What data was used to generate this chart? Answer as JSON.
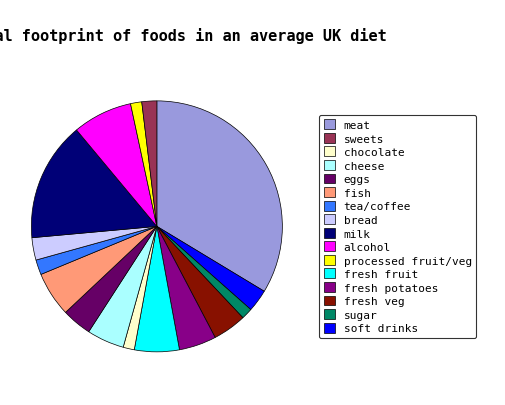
{
  "title": "Total footprint of foods in an average UK diet",
  "labels": [
    "meat",
    "sweets",
    "chocolate",
    "cheese",
    "eggs",
    "fish",
    "tea/coffee",
    "bread",
    "milk",
    "alcohol",
    "processed fruit/veg",
    "fresh fruit",
    "fresh potatoes",
    "fresh veg",
    "sugar",
    "soft drinks"
  ],
  "values": [
    35,
    2,
    1.5,
    5,
    4,
    6,
    2,
    3,
    16,
    8,
    1.5,
    6,
    5,
    4.5,
    1.5,
    3
  ],
  "colors": [
    "#9999dd",
    "#993355",
    "#ffffcc",
    "#aaffff",
    "#660066",
    "#ff9977",
    "#3377ff",
    "#ccccff",
    "#000077",
    "#ff00ff",
    "#ffff00",
    "#00ffff",
    "#880088",
    "#881100",
    "#008866",
    "#0000ff"
  ],
  "pie_order_labels": [
    "meat",
    "soft drinks",
    "sugar",
    "fresh veg",
    "fresh potatoes",
    "fresh fruit",
    "chocolate",
    "cheese",
    "eggs",
    "fish",
    "tea/coffee",
    "bread",
    "milk",
    "alcohol",
    "processed fruit/veg",
    "sweets"
  ],
  "pie_order_values": [
    35,
    3,
    1.5,
    4.5,
    5,
    6,
    1.5,
    5,
    4,
    6,
    2,
    3,
    16,
    8,
    1.5,
    2
  ],
  "pie_order_colors": [
    "#9999dd",
    "#0000ff",
    "#008866",
    "#881100",
    "#880088",
    "#00ffff",
    "#ffffcc",
    "#aaffff",
    "#660066",
    "#ff9977",
    "#3377ff",
    "#ccccff",
    "#000077",
    "#ff00ff",
    "#ffff00",
    "#993355"
  ],
  "background_color": "#ffffff",
  "title_fontsize": 11,
  "legend_fontsize": 8
}
